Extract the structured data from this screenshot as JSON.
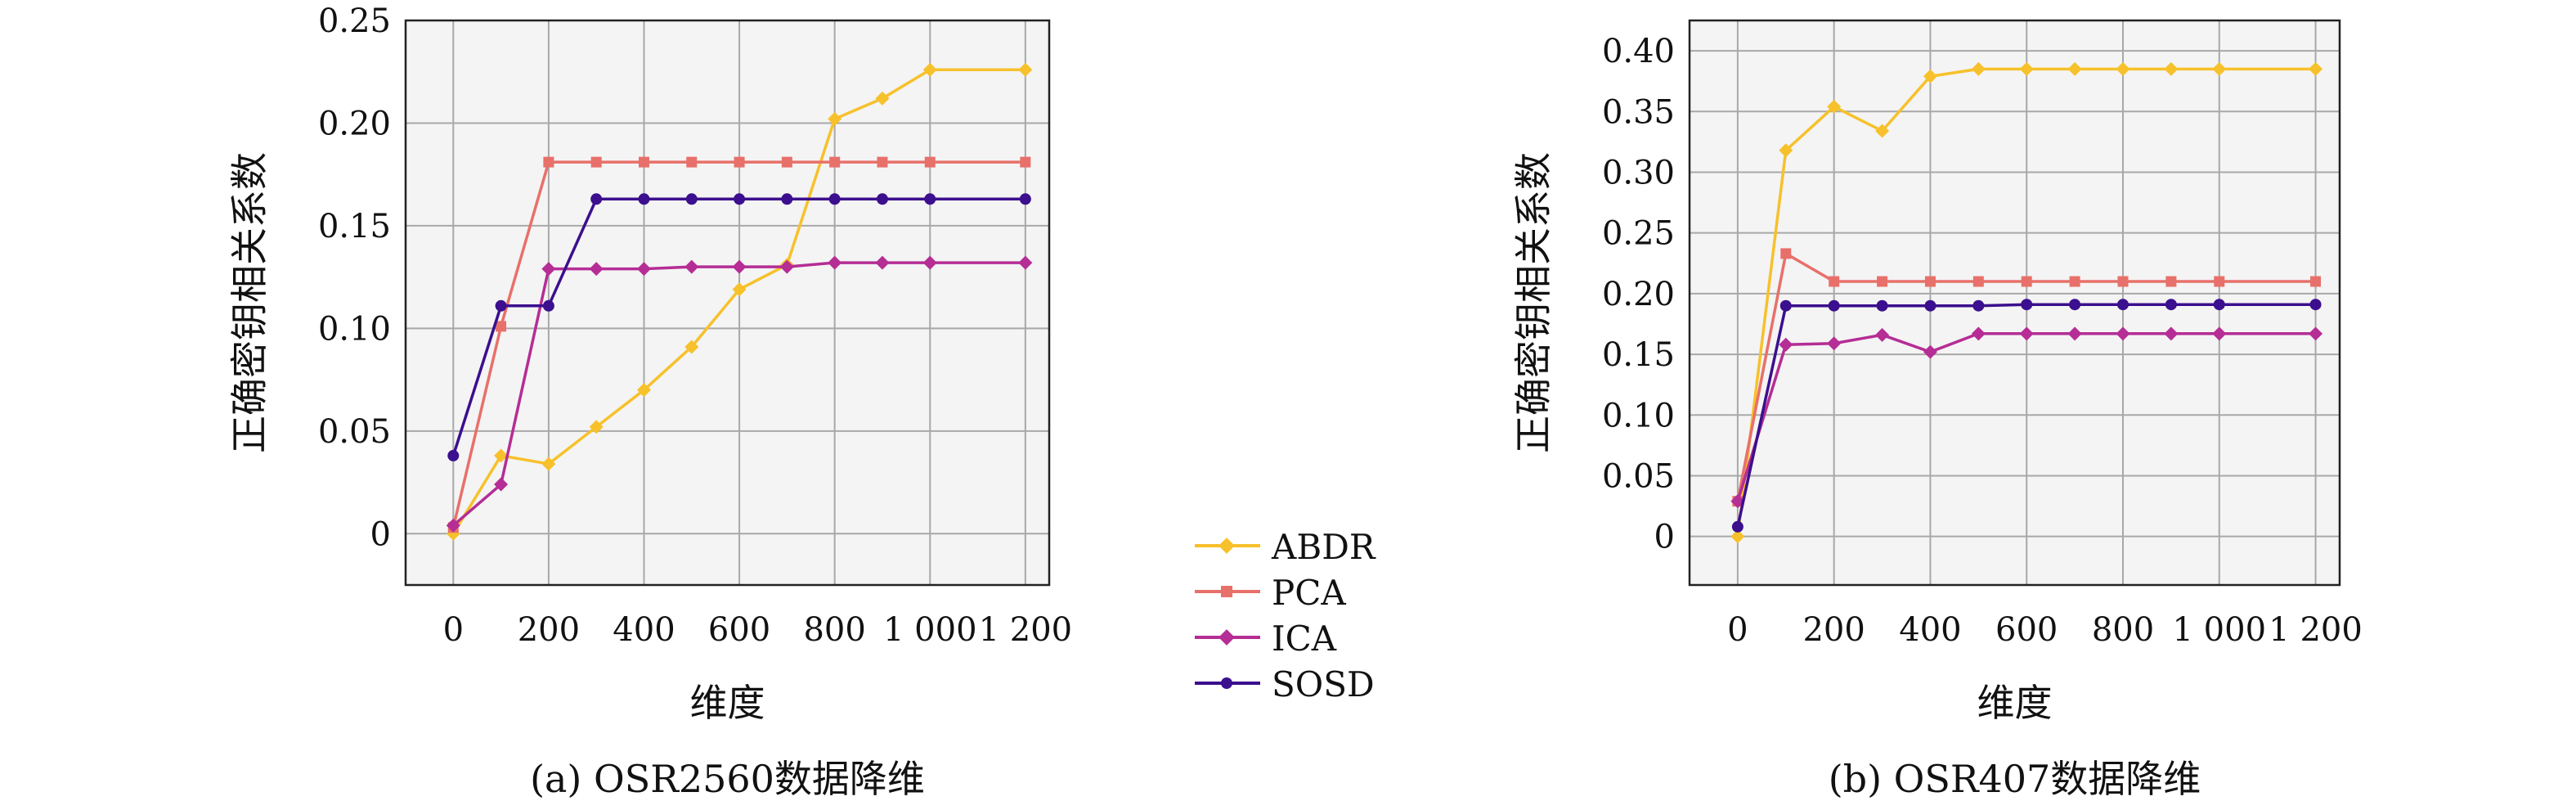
{
  "chart_data": [
    {
      "type": "line",
      "caption": "(a) OSR2560数据降维",
      "xlabel": "维度",
      "ylabel": "正确密钥相关系数",
      "xticks": [
        "0",
        "200",
        "400",
        "600",
        "800",
        "1 000",
        "1 200"
      ],
      "yticks": [
        "0",
        "0.05",
        "0.10",
        "0.15",
        "0.20",
        "0.25"
      ],
      "xlim": [
        -100,
        1250
      ],
      "ylim": [
        -0.025,
        0.25
      ],
      "grid": true,
      "x": [
        0,
        100,
        200,
        300,
        400,
        500,
        600,
        700,
        800,
        900,
        1000,
        1200
      ],
      "series": [
        {
          "name": "ABDR",
          "values": [
            0.0,
            0.038,
            0.034,
            0.052,
            0.07,
            0.091,
            0.119,
            0.131,
            0.202,
            0.212,
            0.226,
            0.226
          ]
        },
        {
          "name": "PCA",
          "values": [
            0.003,
            0.101,
            0.181,
            0.181,
            0.181,
            0.181,
            0.181,
            0.181,
            0.181,
            0.181,
            0.181,
            0.181
          ]
        },
        {
          "name": "ICA",
          "values": [
            0.004,
            0.024,
            0.129,
            0.129,
            0.129,
            0.13,
            0.13,
            0.13,
            0.132,
            0.132,
            0.132,
            0.132
          ]
        },
        {
          "name": "SOSD",
          "values": [
            0.038,
            0.111,
            0.111,
            0.163,
            0.163,
            0.163,
            0.163,
            0.163,
            0.163,
            0.163,
            0.163,
            0.163
          ]
        }
      ]
    },
    {
      "type": "line",
      "caption": "(b) OSR407数据降维",
      "xlabel": "维度",
      "ylabel": "正确密钥相关系数",
      "xticks": [
        "0",
        "200",
        "400",
        "600",
        "800",
        "1 000",
        "1 200"
      ],
      "yticks": [
        "0",
        "0.05",
        "0.10",
        "0.15",
        "0.20",
        "0.25",
        "0.30",
        "0.35",
        "0.40"
      ],
      "xlim": [
        -100,
        1250
      ],
      "ylim": [
        -0.04,
        0.425
      ],
      "grid": true,
      "x": [
        0,
        100,
        200,
        300,
        400,
        500,
        600,
        700,
        800,
        900,
        1000,
        1200
      ],
      "series": [
        {
          "name": "ABDR",
          "values": [
            0.0,
            0.318,
            0.354,
            0.334,
            0.379,
            0.385,
            0.385,
            0.385,
            0.385,
            0.385,
            0.385,
            0.385
          ]
        },
        {
          "name": "PCA",
          "values": [
            0.029,
            0.233,
            0.21,
            0.21,
            0.21,
            0.21,
            0.21,
            0.21,
            0.21,
            0.21,
            0.21,
            0.21
          ]
        },
        {
          "name": "ICA",
          "values": [
            0.029,
            0.158,
            0.159,
            0.166,
            0.152,
            0.167,
            0.167,
            0.167,
            0.167,
            0.167,
            0.167,
            0.167
          ]
        },
        {
          "name": "SOSD",
          "values": [
            0.008,
            0.19,
            0.19,
            0.19,
            0.19,
            0.19,
            0.191,
            0.191,
            0.191,
            0.191,
            0.191,
            0.191
          ]
        }
      ]
    }
  ],
  "legend": {
    "items": [
      {
        "label": "ABDR",
        "color": "#f7c12b",
        "marker": "diamond"
      },
      {
        "label": "PCA",
        "color": "#e8706a",
        "marker": "square"
      },
      {
        "label": "ICA",
        "color": "#b52d95",
        "marker": "diamond"
      },
      {
        "label": "SOSD",
        "color": "#3b0f8e",
        "marker": "circle"
      }
    ]
  },
  "styles": {
    "grid_color": "#a8a8a8",
    "plot_background": "#f4f4f4",
    "axis_color": "#222222"
  }
}
